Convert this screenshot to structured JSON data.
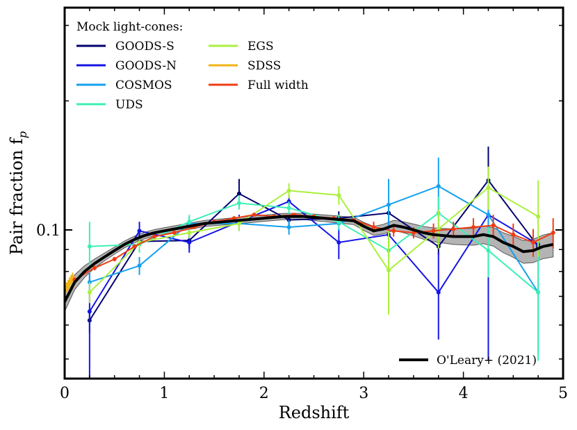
{
  "chart_data": {
    "type": "line",
    "xlabel": "Redshift",
    "ylabel": "Pair fraction f",
    "ylabel_sub": "p",
    "xlim": [
      0,
      5
    ],
    "ylim": [
      0.045,
      0.33
    ],
    "yscale": "log",
    "x_ticks": [
      0,
      1,
      2,
      3,
      4,
      5
    ],
    "x_tick_labels": [
      "0",
      "1",
      "2",
      "3",
      "4",
      "5"
    ],
    "y_tick_labels": [
      {
        "value": 0.1,
        "label": "0.1"
      }
    ],
    "legend_title": "Mock light-cones:",
    "series": [
      {
        "name": "GOODS-S",
        "color": "#00006e",
        "x": [
          0.25,
          0.75,
          1.25,
          1.75,
          2.25,
          2.75,
          3.25,
          3.75,
          4.25,
          4.75
        ],
        "y": [
          0.0615,
          0.094,
          0.0945,
          0.1215,
          0.1055,
          0.1065,
          0.1095,
          0.0915,
          0.1305,
          0.0915
        ],
        "yerr_low": [
          0.004,
          0.003,
          0.004,
          0.009,
          0.003,
          0.003,
          0.004,
          0.004,
          0.021,
          0.003
        ],
        "yerr_high": [
          0.004,
          0.003,
          0.003,
          0.01,
          0.004,
          0.004,
          0.004,
          0.004,
          0.026,
          0.003
        ]
      },
      {
        "name": "GOODS-N",
        "color": "#1414e6",
        "x": [
          0.25,
          0.75,
          1.25,
          1.75,
          2.25,
          2.75,
          3.25,
          3.75,
          4.25,
          4.75
        ],
        "y": [
          0.0645,
          0.0995,
          0.0935,
          0.1045,
          0.1165,
          0.0935,
          0.0975,
          0.0715,
          0.1085,
          0.0925
        ],
        "yerr_low": [
          0.025,
          0.005,
          0.005,
          0.005,
          0.005,
          0.008,
          0.01,
          0.016,
          0.059,
          0.005
        ],
        "yerr_high": [
          0.016,
          0.005,
          0.004,
          0.004,
          0.004,
          0.007,
          0.01,
          0.017,
          0.0,
          0.004
        ]
      },
      {
        "name": "COSMOS",
        "color": "#14a0f0",
        "x": [
          0.25,
          0.75,
          1.25,
          1.75,
          2.25,
          2.75,
          3.25,
          3.75,
          4.25,
          4.75
        ],
        "y": [
          0.0755,
          0.0825,
          0.1035,
          0.1035,
          0.1015,
          0.1035,
          0.1145,
          0.1265,
          0.1085,
          0.0715
        ],
        "yerr_low": [
          0.004,
          0.004,
          0.004,
          0.004,
          0.004,
          0.004,
          0.015,
          0.02,
          0.02,
          0.02
        ],
        "yerr_high": [
          0.004,
          0.004,
          0.004,
          0.004,
          0.004,
          0.004,
          0.017,
          0.021,
          0.023,
          0.022
        ]
      },
      {
        "name": "UDS",
        "color": "#3cf0b4",
        "x": [
          0.25,
          0.75,
          1.25,
          1.75,
          2.25,
          2.75,
          3.25,
          3.75,
          4.25,
          4.75
        ],
        "y": [
          0.0915,
          0.0925,
          0.1045,
          0.1155,
          0.1125,
          0.1045,
          0.0895,
          0.1095,
          0.0895,
          0.0715
        ],
        "yerr_low": [
          0.012,
          0.004,
          0.004,
          0.004,
          0.004,
          0.004,
          0.008,
          0.01,
          0.012,
          0.022
        ],
        "yerr_high": [
          0.013,
          0.004,
          0.004,
          0.005,
          0.004,
          0.004,
          0.008,
          0.01,
          0.012,
          0.023
        ]
      },
      {
        "name": "EGS",
        "color": "#aaf03c",
        "x": [
          0.25,
          0.75,
          1.25,
          1.75,
          2.25,
          2.75,
          3.25,
          3.75,
          4.25,
          4.75
        ],
        "y": [
          0.0715,
          0.0935,
          0.0985,
          0.1035,
          0.1235,
          0.1205,
          0.0805,
          0.1005,
          0.1255,
          0.1075
        ],
        "yerr_low": [
          0.004,
          0.003,
          0.003,
          0.004,
          0.005,
          0.006,
          0.017,
          0.01,
          0.014,
          0.021
        ],
        "yerr_high": [
          0.004,
          0.003,
          0.004,
          0.004,
          0.005,
          0.006,
          0.019,
          0.011,
          0.015,
          0.023
        ]
      },
      {
        "name": "SDSS",
        "color": "#f0b414",
        "x": [
          0.02,
          0.035,
          0.05,
          0.065,
          0.08
        ],
        "y": [
          0.0735,
          0.0745,
          0.0755,
          0.0765,
          0.0775
        ],
        "yerr_low": [
          0.002,
          0.002,
          0.002,
          0.002,
          0.002
        ],
        "yerr_high": [
          0.002,
          0.002,
          0.002,
          0.002,
          0.002
        ]
      },
      {
        "name": "Full width",
        "color": "#f03c14",
        "x": [
          0.1,
          0.3,
          0.5,
          0.7,
          0.9,
          1.1,
          1.3,
          1.5,
          1.7,
          1.9,
          2.1,
          2.3,
          2.5,
          2.7,
          2.9,
          3.1,
          3.3,
          3.5,
          3.7,
          3.9,
          4.1,
          4.3,
          4.5,
          4.7,
          4.9
        ],
        "y": [
          0.0765,
          0.0815,
          0.0855,
          0.0915,
          0.0965,
          0.0985,
          0.1015,
          0.1045,
          0.1065,
          0.1085,
          0.1075,
          0.1085,
          0.1075,
          0.1065,
          0.1055,
          0.1015,
          0.0995,
          0.0985,
          0.0995,
          0.1005,
          0.1015,
          0.1025,
          0.0975,
          0.0935,
          0.0985
        ],
        "yerr_low": [
          0.001,
          0.001,
          0.001,
          0.001,
          0.001,
          0.001,
          0.001,
          0.001,
          0.001,
          0.001,
          0.001,
          0.001,
          0.001,
          0.001,
          0.001,
          0.003,
          0.003,
          0.003,
          0.004,
          0.004,
          0.005,
          0.006,
          0.006,
          0.007,
          0.008
        ],
        "yerr_high": [
          0.001,
          0.001,
          0.001,
          0.001,
          0.001,
          0.001,
          0.001,
          0.001,
          0.001,
          0.001,
          0.001,
          0.001,
          0.001,
          0.001,
          0.001,
          0.003,
          0.003,
          0.003,
          0.004,
          0.004,
          0.005,
          0.006,
          0.006,
          0.007,
          0.008
        ]
      }
    ],
    "reference": {
      "name": "O'Leary+ (2021)",
      "color": "#000000",
      "band_color": "#b4b4b4",
      "x": [
        0.0,
        0.1,
        0.2,
        0.3,
        0.4,
        0.5,
        0.6,
        0.7,
        0.8,
        0.9,
        1.0,
        1.1,
        1.2,
        1.3,
        1.4,
        1.5,
        1.6,
        1.7,
        1.8,
        1.9,
        2.0,
        2.1,
        2.2,
        2.3,
        2.4,
        2.5,
        2.6,
        2.7,
        2.8,
        2.9,
        3.0,
        3.1,
        3.2,
        3.3,
        3.4,
        3.5,
        3.6,
        3.7,
        3.8,
        3.9,
        4.0,
        4.1,
        4.2,
        4.3,
        4.4,
        4.5,
        4.6,
        4.7,
        4.8,
        4.9
      ],
      "y": [
        0.068,
        0.0755,
        0.08,
        0.0835,
        0.0865,
        0.0895,
        0.0925,
        0.095,
        0.097,
        0.0985,
        0.0995,
        0.1005,
        0.1015,
        0.1025,
        0.1035,
        0.104,
        0.1045,
        0.105,
        0.1055,
        0.106,
        0.1065,
        0.107,
        0.1075,
        0.1075,
        0.1075,
        0.107,
        0.1065,
        0.106,
        0.1055,
        0.105,
        0.102,
        0.0995,
        0.1005,
        0.1025,
        0.1015,
        0.1,
        0.0985,
        0.0975,
        0.097,
        0.0965,
        0.0965,
        0.0965,
        0.0975,
        0.0965,
        0.0935,
        0.0915,
        0.089,
        0.0895,
        0.0915,
        0.0925
      ],
      "band": [
        0.0035,
        0.003,
        0.0025,
        0.002,
        0.0018,
        0.0017,
        0.0017,
        0.0017,
        0.0017,
        0.0017,
        0.0017,
        0.0017,
        0.0017,
        0.0017,
        0.0017,
        0.0017,
        0.0017,
        0.0018,
        0.0018,
        0.0018,
        0.0018,
        0.0018,
        0.0018,
        0.0018,
        0.0018,
        0.0019,
        0.0019,
        0.002,
        0.002,
        0.0021,
        0.0022,
        0.0024,
        0.0026,
        0.0028,
        0.003,
        0.0032,
        0.0034,
        0.0036,
        0.0038,
        0.004,
        0.0042,
        0.0044,
        0.0046,
        0.0048,
        0.005,
        0.0052,
        0.0054,
        0.0056,
        0.0058,
        0.006
      ]
    }
  }
}
